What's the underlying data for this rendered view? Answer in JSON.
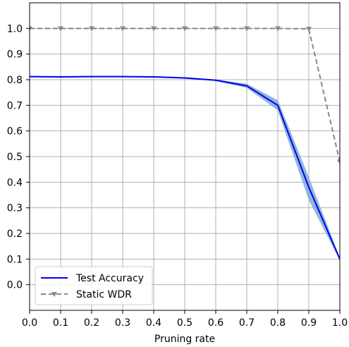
{
  "chart_data": {
    "type": "line",
    "title": "",
    "xlabel": "Pruning rate",
    "ylabel": "",
    "xlim": [
      0.0,
      1.0
    ],
    "ylim": [
      -0.1,
      1.1
    ],
    "x_ticks": [
      "0.0",
      "0.1",
      "0.2",
      "0.3",
      "0.4",
      "0.5",
      "0.6",
      "0.7",
      "0.8",
      "0.9",
      "1.0"
    ],
    "y_ticks": [
      "0.0",
      "0.1",
      "0.2",
      "0.3",
      "0.4",
      "0.5",
      "0.6",
      "0.7",
      "0.8",
      "0.9",
      "1.0"
    ],
    "x_tick_values": [
      0.0,
      0.1,
      0.2,
      0.3,
      0.4,
      0.5,
      0.6,
      0.7,
      0.8,
      0.9,
      1.0
    ],
    "y_tick_values": [
      0.0,
      0.1,
      0.2,
      0.3,
      0.4,
      0.5,
      0.6,
      0.7,
      0.8,
      0.9,
      1.0
    ],
    "grid": true,
    "legend_position": "lower-left",
    "x": [
      0.0,
      0.1,
      0.2,
      0.3,
      0.4,
      0.5,
      0.6,
      0.7,
      0.8,
      0.9,
      1.0
    ],
    "series": [
      {
        "name": "Test Accuracy",
        "style": "solid",
        "color": "#0000ee",
        "band_color": "#7eaad6",
        "values": [
          0.812,
          0.811,
          0.812,
          0.812,
          0.811,
          0.807,
          0.798,
          0.776,
          0.7,
          0.38,
          0.1
        ],
        "lower": [
          0.81,
          0.809,
          0.81,
          0.81,
          0.809,
          0.805,
          0.795,
          0.768,
          0.68,
          0.33,
          0.095
        ],
        "upper": [
          0.814,
          0.813,
          0.814,
          0.814,
          0.813,
          0.809,
          0.801,
          0.784,
          0.72,
          0.42,
          0.105
        ]
      },
      {
        "name": "Static WDR",
        "style": "dashed",
        "marker": "triangle-down",
        "color": "#888888",
        "values": [
          1.0,
          1.0,
          1.0,
          1.0,
          1.0,
          1.0,
          1.0,
          1.0,
          1.0,
          0.998,
          0.48
        ]
      }
    ]
  }
}
